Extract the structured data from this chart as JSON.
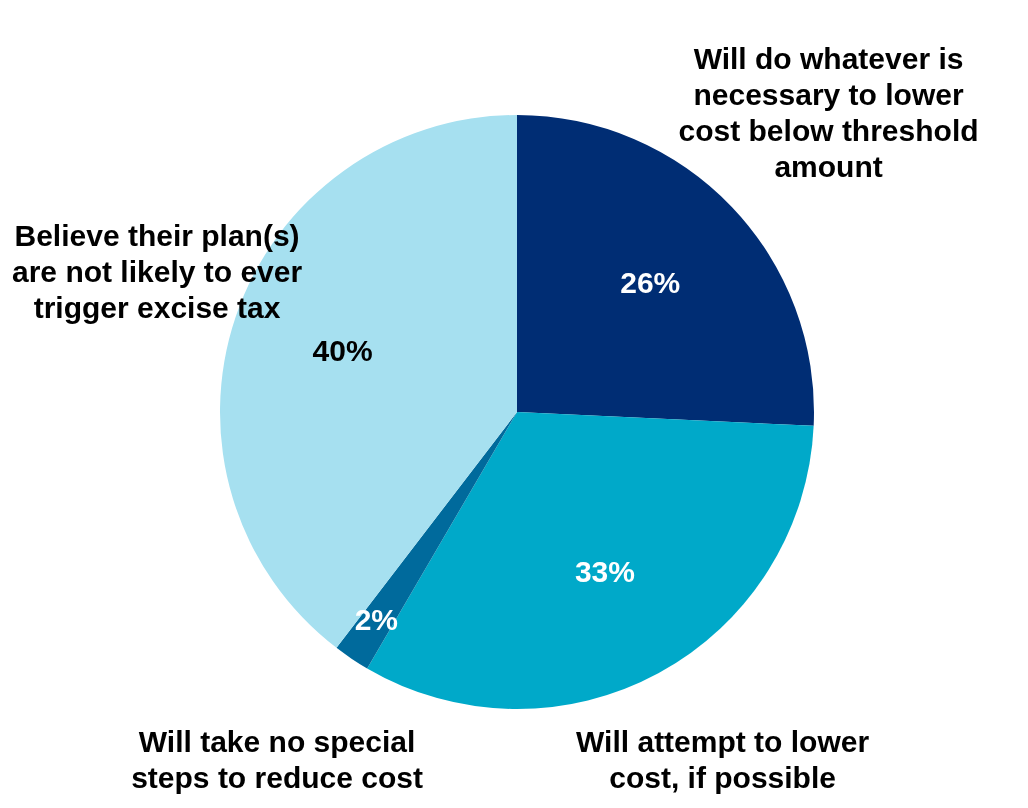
{
  "chart_data": {
    "type": "pie",
    "categories": [
      "Will do whatever is necessary to lower cost below threshold amount",
      "Will attempt to lower cost, if possible",
      "Will take no special steps to reduce cost",
      "Believe their plan(s) are not likely to ever trigger excise tax"
    ],
    "values": [
      26,
      33,
      2,
      40
    ],
    "colors": [
      "#002d74",
      "#00a9c9",
      "#006a9c",
      "#a6e0f0"
    ],
    "value_labels": [
      "26%",
      "33%",
      "2%",
      "40%"
    ],
    "legend": false
  }
}
